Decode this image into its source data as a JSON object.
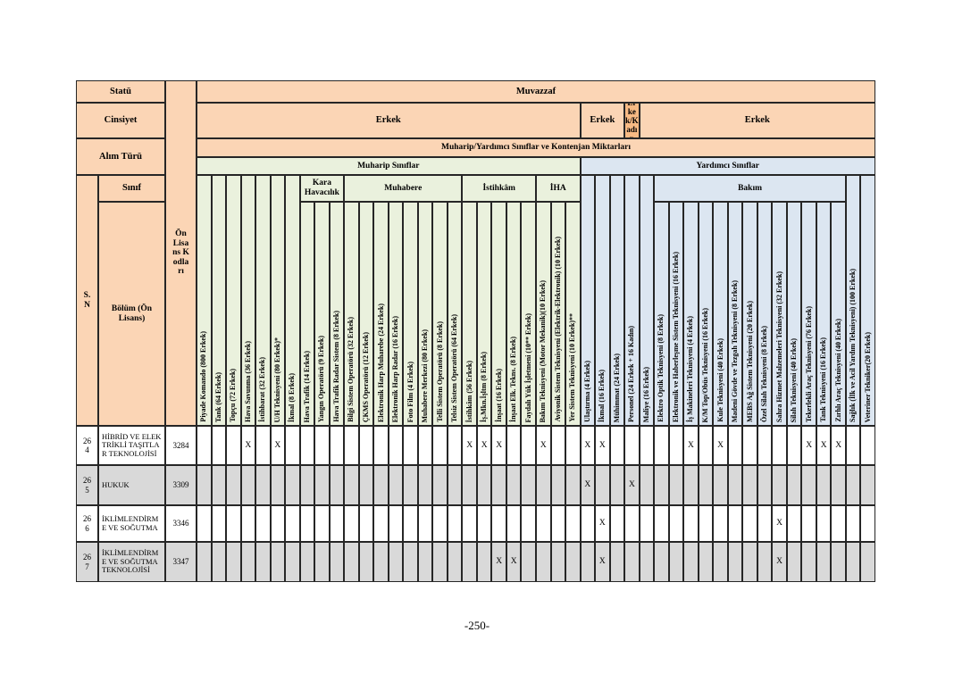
{
  "page": {
    "footer": "-250-"
  },
  "colors": {
    "header_orange": "#FBD5B5",
    "header_orange_dark": "#F7BA84",
    "muharip_green": "#EAF1DD",
    "yardimci_blue": "#DCE6F1",
    "stripe_gray": "#D9D9D9"
  },
  "table": {
    "left_header": {
      "statu": "Statü",
      "cinsiyet": "Cinsiyet",
      "alim_turu": "Alım Türü",
      "sinif": "Sınıf",
      "sn": "S.N",
      "bolum": "Bölüm (Ön Lisans)",
      "on_lisans_kodlari": "Ön Lisans Kodları"
    },
    "top_header": {
      "muvazzaf": "Muvazzaf",
      "alim_title": "Muharip/Yardımcı Sınıflar ve Kontenjan Miktarları",
      "gender_groups": [
        {
          "label": "Erkek",
          "span": 26,
          "dark": false
        },
        {
          "label": "Erkek",
          "span": 3,
          "dark": false
        },
        {
          "label": "Erkek/Kadın",
          "span": 1,
          "dark": true
        },
        {
          "label": "Erkek",
          "span": 16,
          "dark": false
        }
      ],
      "class_bands": [
        {
          "label": "Muharip Sınıflar",
          "span": 26,
          "color": "green"
        },
        {
          "label": "Yardımcı Sınıflar",
          "span": 20,
          "color": "blue"
        }
      ]
    },
    "column_groups": [
      {
        "label": "",
        "span": 7,
        "color": "green"
      },
      {
        "label": "Kara Havacılık",
        "span": 3,
        "color": "green"
      },
      {
        "label": "Muhabere",
        "span": 8,
        "color": "green"
      },
      {
        "label": "İstihkâm",
        "span": 5,
        "color": "green"
      },
      {
        "label": "İHA",
        "span": 3,
        "color": "green"
      },
      {
        "label": "",
        "span": 5,
        "color": "blue"
      },
      {
        "label": "Bakım",
        "span": 13,
        "color": "blue"
      },
      {
        "label": "",
        "span": 2,
        "color": "blue"
      }
    ],
    "columns": [
      "Piyade Komando (800 Erkek)",
      "Tank (64 Erkek)",
      "Topçu (72 Erkek)",
      "Hava Savunma (36 Erkek)",
      "İstihbarat (32 Erkek)",
      "U/H Teknisyeni (80 Erkek)*",
      "İkmal (8 Erkek)",
      "Hava Trafik (14 Erkek)",
      "Yangın Operatörü (9 Erkek)",
      "Hava Trafik Radar Sistem (8 Erkek)",
      "Bilgi Sistem Operatörü (32 Erkek)",
      "ÇKMS Operatörü (12 Erkek)",
      "Elektronik Harp Muharebe (24 Erkek)",
      "Elektronik Harp Radar (16 Erkek)",
      "Foto Film (4 Erkek)",
      "Muhabere Merkezi (80 Erkek)",
      "Telli Sistem Operatörü (8 Erkek)",
      "Telsiz Sistem Operatörü (64 Erkek)",
      "İstihkâm (56 Erkek)",
      "İş.Mkn.İşltm (8 Erkek)",
      "İnşaat (16 Erkek)",
      "İnşaat Elk. Tekns. (8 Erkek)",
      "Faydalı Yük İşletmeni (10** Erkek)",
      "Bakım Teknisyeni (Motor Mekanik)(10 Erkek)",
      "Aviyonik Sistem Teknisyeni (Elektrik-Elektronik) (10 Erkek)",
      "Yer Sistem Teknisyeni (10 Erkek)**",
      "Ulaştırma (4 Erkek)",
      "İkmal (16 Erkek)",
      "Mühimmat (24 Erkek)",
      "Personel (24 Erkek + 16 Kadın)",
      "Maliye (16 Erkek)",
      "Elektro Optik Teknisyeni (8 Erkek)",
      "Elektronik ve Haberleşme Sistem Teknisyeni (16 Erkek)",
      "İş Makineleri Teknisyeni (4 Erkek)",
      "K/M Top/Obüs Teknisyeni (16 Erkek)",
      "Kule Teknisyeni (40 Erkek)",
      "Madeni Gövde ve Tezgah Teknisyeni (8 Erkek)",
      "MEBS Ağ Sistem Teknisyeni (20 Erkek)",
      "Özel Silah Teknisyeni (8 Erkek)",
      "Sahra Hizmet Malzemeleri Teknisyeni (32 Erkek)",
      "Silah Teknisyeni (40 Erkek)",
      "Tekerlekli Araç Teknisyeni (76 Erkek)",
      "Tank Teknisyeni (16 Erkek)",
      "Zırhlı Araç Teknisyeni (40 Erkek)",
      "Sağlık (İlk ve Acil Yardım Teknisyeni) (100 Erkek)",
      "Veteriner Tekniker(20 Erkek)"
    ],
    "mark_symbol": "X",
    "rows": [
      {
        "sn": "264",
        "bolum": "HİBRİD VE ELEKTRİKLİ TAŞITLAR TEKNOLOJİSİ",
        "kod": "3284",
        "marks": [
          3,
          5,
          18,
          19,
          20,
          23,
          26,
          27,
          33,
          35,
          41,
          42,
          43
        ]
      },
      {
        "sn": "265",
        "bolum": "HUKUK",
        "kod": "3309",
        "marks": [
          26,
          29
        ]
      },
      {
        "sn": "266",
        "bolum": "İKLİMLENDİRME VE SOĞUTMA",
        "kod": "3346",
        "marks": [
          27,
          39
        ]
      },
      {
        "sn": "267",
        "bolum": "İKLİMLENDİRME VE SOĞUTMA TEKNOLOJİSİ",
        "kod": "3347",
        "marks": [
          20,
          21,
          27,
          39
        ]
      }
    ]
  }
}
